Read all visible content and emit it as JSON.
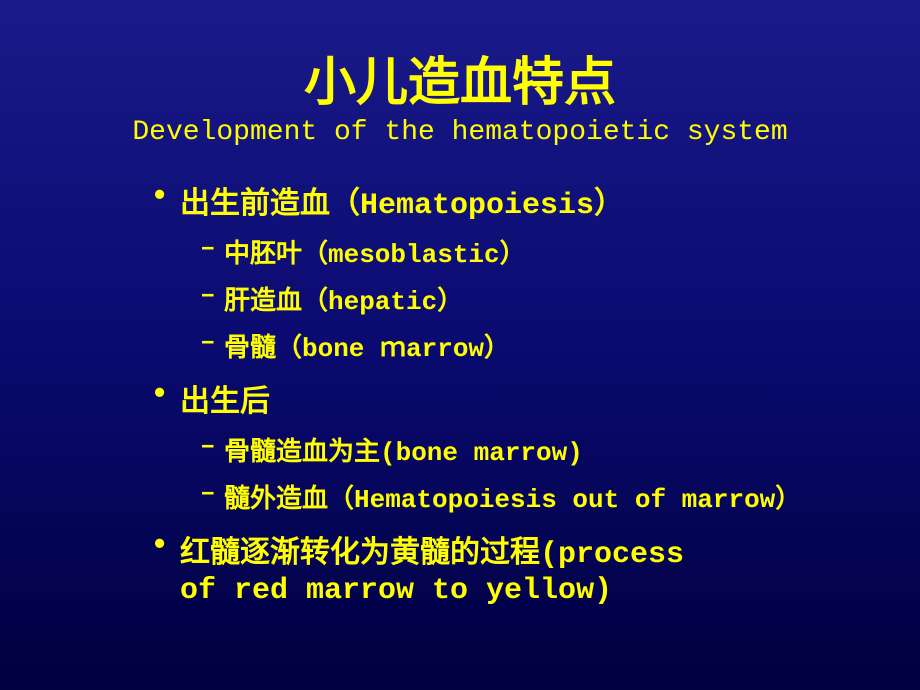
{
  "title": {
    "main": "小儿造血特点",
    "sub": "Development of the hematopoietic system"
  },
  "bullets": {
    "b1": "出生前造血（Hematopoiesis）",
    "b1_1": "中胚叶（mesoblastic）",
    "b1_2": "肝造血（hepatic）",
    "b1_3": "骨髓（bone ｍarrow）",
    "b2": "出生后",
    "b2_1": "骨髓造血为主(bone marrow)",
    "b2_2": "髓外造血（Hematopoiesis out of marrow）",
    "b3": "红髓逐渐转化为黄髓的过程(process",
    "b3_wrap": "of red marrow to yellow)"
  },
  "styling": {
    "background_gradient_top": "#1a1a8a",
    "background_gradient_mid": "#0a0a70",
    "background_gradient_bottom": "#000040",
    "text_color": "#ffff00",
    "title_main_fontsize": 52,
    "title_sub_fontsize": 28,
    "bullet1_fontsize": 30,
    "bullet2_fontsize": 26,
    "slide_width": 920,
    "slide_height": 690
  }
}
